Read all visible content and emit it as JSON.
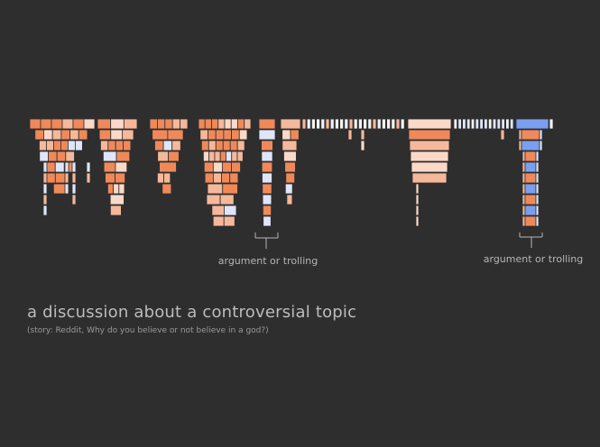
{
  "title": "a discussion about a controversial topic",
  "subtitle": "(story: Reddit, Why do you believe or not believe in a god?)",
  "annotations": [
    "argument or trolling",
    "argument or trolling"
  ],
  "colors": {
    "background": "#2e2e2e",
    "orange": "#f0895a",
    "light_orange": "#f5b89a",
    "pale": "#fbd9c8",
    "blue": "#7b9ff0",
    "light_blue": "#dfe6fb",
    "white": "#f2f2f2",
    "annotation": "#b5b5b5"
  },
  "chart_data": {
    "type": "icicle",
    "description_source": "visual encoding of comment threads; each column block is a top-level comment, rows are reply depth",
    "threads": [
      {
        "depth": 7,
        "tone": "orange"
      },
      {
        "depth": 9,
        "tone": "orange"
      },
      {
        "depth": 6,
        "tone": "mixed"
      },
      {
        "depth": 10,
        "tone": "orange"
      },
      {
        "depth": 9,
        "tone": "alternating"
      },
      {
        "depth": 3,
        "tone": "pale"
      },
      {
        "depth": 9,
        "tone": "orange"
      },
      {
        "depth": 1,
        "tone": "light"
      },
      {
        "depth": 10,
        "tone": "alternating_blue"
      }
    ]
  }
}
